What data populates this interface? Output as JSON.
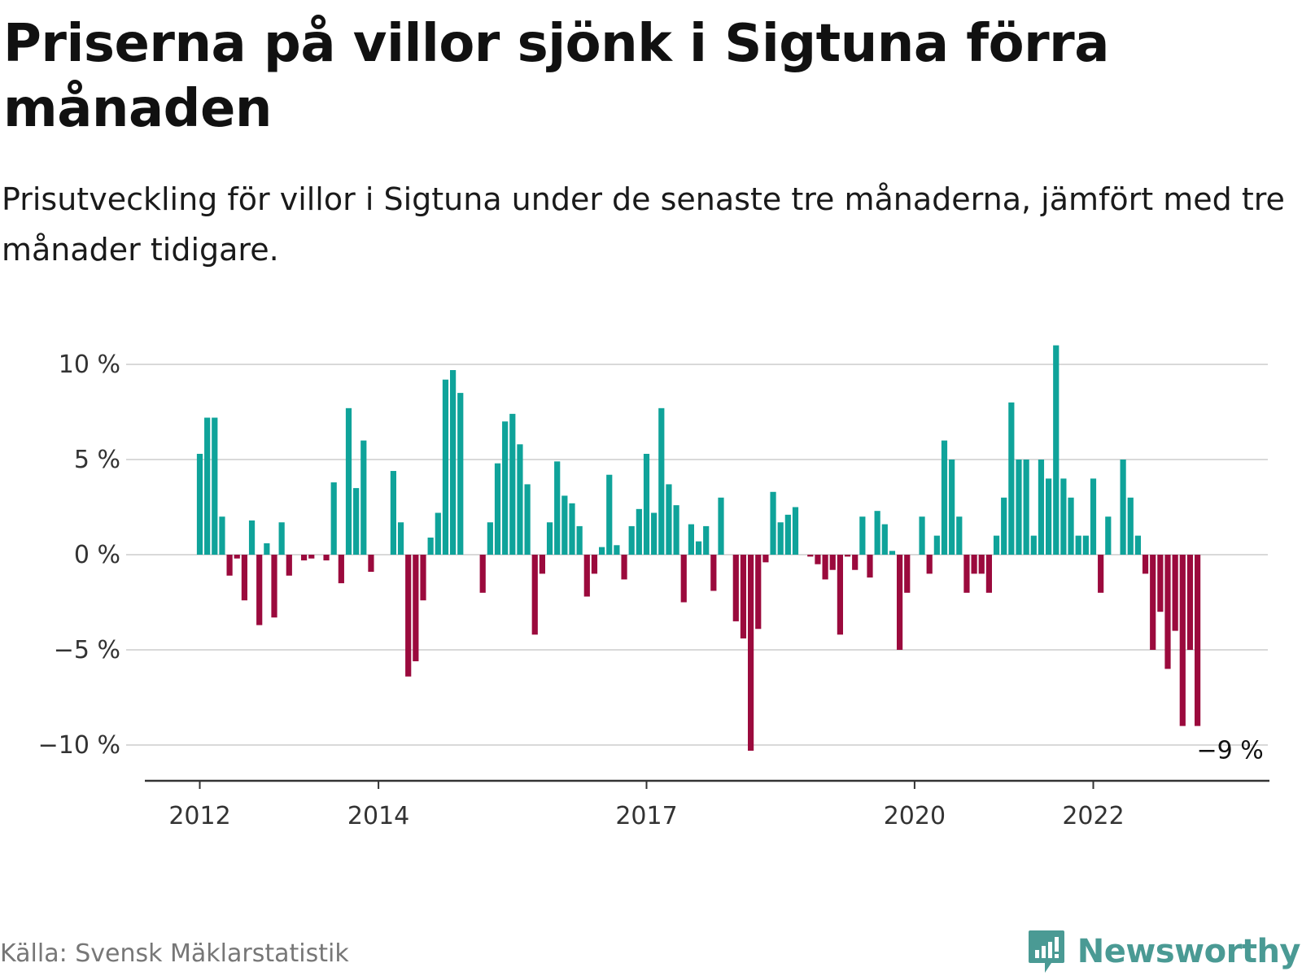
{
  "title": "Priserna på villor sjönk i Sigtuna förra månaden",
  "subtitle": "Prisutveckling för villor i Sigtuna under de senaste tre månaderna, jämfört med tre månader tidigare.",
  "source": "Källa: Svensk Mäklarstatistik",
  "brand": {
    "name": "Newsworthy",
    "icon": "newsworthy-logo-icon"
  },
  "colors": {
    "positive": "#0fa39a",
    "negative": "#9b0a3d",
    "grid": "#d9d9d9",
    "axis": "#333333"
  },
  "chart_data": {
    "type": "bar",
    "xlabel": "",
    "ylabel": "",
    "ylim": [
      -12,
      11.5
    ],
    "yticks": [
      10,
      5,
      0,
      -5,
      -10
    ],
    "ytick_labels": [
      "10 %",
      "5 %",
      "0 %",
      "−5 %",
      "−10 %"
    ],
    "xticks": [
      {
        "label": "2012",
        "index": 0
      },
      {
        "label": "2014",
        "index": 24
      },
      {
        "label": "2017",
        "index": 60
      },
      {
        "label": "2020",
        "index": 96
      },
      {
        "label": "2022",
        "index": 120
      }
    ],
    "last_value_label": "−9 %",
    "grid": true,
    "values": [
      5.3,
      7.2,
      7.2,
      2.0,
      -1.1,
      -0.2,
      -2.4,
      1.8,
      -3.7,
      0.6,
      -3.3,
      1.7,
      -1.1,
      0,
      -0.3,
      -0.2,
      0,
      -0.3,
      3.8,
      -1.5,
      7.7,
      3.5,
      6.0,
      -0.9,
      0,
      0,
      4.4,
      1.7,
      -6.4,
      -5.6,
      -2.4,
      0.9,
      2.2,
      9.2,
      9.7,
      8.5,
      0,
      0,
      -2.0,
      1.7,
      4.8,
      7.0,
      7.4,
      5.8,
      3.7,
      -4.2,
      -1.0,
      1.7,
      4.9,
      3.1,
      2.7,
      1.5,
      -2.2,
      -1.0,
      0.4,
      4.2,
      0.5,
      -1.3,
      1.5,
      2.4,
      5.3,
      2.2,
      7.7,
      3.7,
      2.6,
      -2.5,
      1.6,
      0.7,
      1.5,
      -1.9,
      3.0,
      0,
      -3.5,
      -4.4,
      -10.3,
      -3.9,
      -0.4,
      3.3,
      1.7,
      2.1,
      2.5,
      0,
      -0.1,
      -0.5,
      -1.3,
      -0.8,
      -4.2,
      -0.1,
      -0.8,
      2.0,
      -1.2,
      2.3,
      1.6,
      0.2,
      -5.0,
      -2.0,
      0,
      2.0,
      -1.0,
      1.0,
      6.0,
      5.0,
      2.0,
      -2.0,
      -1.0,
      -1.0,
      -2.0,
      1.0,
      3.0,
      8.0,
      5.0,
      5.0,
      1.0,
      5.0,
      4.0,
      11.0,
      4.0,
      3.0,
      1.0,
      1.0,
      4.0,
      -2.0,
      2.0,
      0,
      5.0,
      3.0,
      1.0,
      -1.0,
      -5.0,
      -3.0,
      -6.0,
      -4.0,
      -9.0,
      -5.0,
      -9.0
    ]
  }
}
